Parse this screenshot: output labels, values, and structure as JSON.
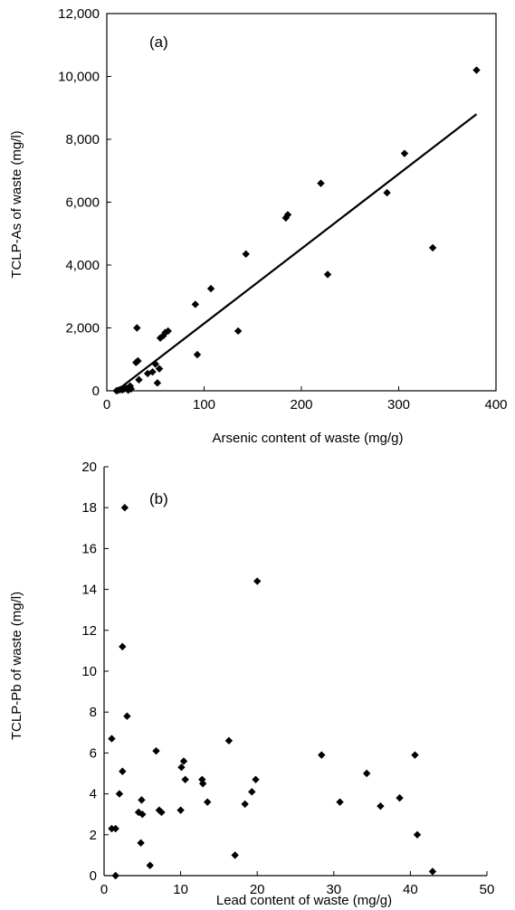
{
  "chart_data": [
    {
      "type": "scatter",
      "panel_label": "(a)",
      "xlabel": "Arsenic content of waste (mg/g)",
      "ylabel": "TCLP-As of waste (mg/l)",
      "xlim": [
        0,
        400
      ],
      "ylim": [
        0,
        12000
      ],
      "xticks": [
        0,
        100,
        200,
        300,
        400
      ],
      "xtick_labels": [
        "0",
        "100",
        "200",
        "300",
        "400"
      ],
      "yticks": [
        0,
        2000,
        4000,
        6000,
        8000,
        10000,
        12000
      ],
      "ytick_labels": [
        "0",
        "2,000",
        "4,000",
        "6,000",
        "8,000",
        "10,000",
        "12,000"
      ],
      "grid": false,
      "points": [
        {
          "x": 10,
          "y": 0
        },
        {
          "x": 12,
          "y": 20
        },
        {
          "x": 14,
          "y": 40
        },
        {
          "x": 16,
          "y": 30
        },
        {
          "x": 18,
          "y": 60
        },
        {
          "x": 20,
          "y": 80
        },
        {
          "x": 22,
          "y": 20
        },
        {
          "x": 24,
          "y": 150
        },
        {
          "x": 25,
          "y": 60
        },
        {
          "x": 30,
          "y": 900
        },
        {
          "x": 31,
          "y": 2000
        },
        {
          "x": 32,
          "y": 950
        },
        {
          "x": 33,
          "y": 350
        },
        {
          "x": 42,
          "y": 550
        },
        {
          "x": 47,
          "y": 600
        },
        {
          "x": 50,
          "y": 850
        },
        {
          "x": 52,
          "y": 250
        },
        {
          "x": 54,
          "y": 700
        },
        {
          "x": 55,
          "y": 1680
        },
        {
          "x": 58,
          "y": 1750
        },
        {
          "x": 60,
          "y": 1850
        },
        {
          "x": 63,
          "y": 1900
        },
        {
          "x": 91,
          "y": 2750
        },
        {
          "x": 93,
          "y": 1150
        },
        {
          "x": 107,
          "y": 3250
        },
        {
          "x": 135,
          "y": 1900
        },
        {
          "x": 143,
          "y": 4350
        },
        {
          "x": 184,
          "y": 5500
        },
        {
          "x": 186,
          "y": 5600
        },
        {
          "x": 220,
          "y": 6600
        },
        {
          "x": 227,
          "y": 3700
        },
        {
          "x": 288,
          "y": 6300
        },
        {
          "x": 306,
          "y": 7550
        },
        {
          "x": 335,
          "y": 4550
        },
        {
          "x": 380,
          "y": 10200
        }
      ],
      "trendline": {
        "x": [
          10,
          380
        ],
        "y": [
          0,
          8800
        ]
      }
    },
    {
      "type": "scatter",
      "panel_label": "(b)",
      "xlabel": "Lead content of waste (mg/g)",
      "ylabel": "TCLP-Pb of waste (mg/l)",
      "xlim": [
        0,
        50
      ],
      "ylim": [
        0,
        20
      ],
      "xticks": [
        0,
        10,
        20,
        30,
        40,
        50
      ],
      "xtick_labels": [
        "0",
        "10",
        "20",
        "30",
        "40",
        "50"
      ],
      "yticks": [
        0,
        2,
        4,
        6,
        8,
        10,
        12,
        14,
        16,
        18,
        20
      ],
      "ytick_labels": [
        "0",
        "2",
        "4",
        "6",
        "8",
        "10",
        "12",
        "14",
        "16",
        "18",
        "20"
      ],
      "grid": false,
      "points": [
        {
          "x": 1.0,
          "y": 6.7
        },
        {
          "x": 1.0,
          "y": 2.3
        },
        {
          "x": 1.5,
          "y": 2.3
        },
        {
          "x": 1.5,
          "y": 0.0
        },
        {
          "x": 2.0,
          "y": 4.0
        },
        {
          "x": 2.4,
          "y": 11.2
        },
        {
          "x": 2.4,
          "y": 5.1
        },
        {
          "x": 2.7,
          "y": 18.0
        },
        {
          "x": 3.0,
          "y": 7.8
        },
        {
          "x": 4.5,
          "y": 3.1
        },
        {
          "x": 4.8,
          "y": 1.6
        },
        {
          "x": 4.9,
          "y": 3.7
        },
        {
          "x": 5.0,
          "y": 3.0
        },
        {
          "x": 6.0,
          "y": 0.5
        },
        {
          "x": 6.8,
          "y": 6.1
        },
        {
          "x": 7.2,
          "y": 3.2
        },
        {
          "x": 7.5,
          "y": 3.1
        },
        {
          "x": 10.0,
          "y": 3.2
        },
        {
          "x": 10.1,
          "y": 5.3
        },
        {
          "x": 10.4,
          "y": 5.6
        },
        {
          "x": 10.6,
          "y": 4.7
        },
        {
          "x": 12.8,
          "y": 4.7
        },
        {
          "x": 12.9,
          "y": 4.5
        },
        {
          "x": 13.5,
          "y": 3.6
        },
        {
          "x": 16.3,
          "y": 6.6
        },
        {
          "x": 17.1,
          "y": 1.0
        },
        {
          "x": 18.4,
          "y": 3.5
        },
        {
          "x": 19.3,
          "y": 4.1
        },
        {
          "x": 19.8,
          "y": 4.7
        },
        {
          "x": 20.0,
          "y": 14.4
        },
        {
          "x": 28.4,
          "y": 5.9
        },
        {
          "x": 30.8,
          "y": 3.6
        },
        {
          "x": 34.3,
          "y": 5.0
        },
        {
          "x": 36.1,
          "y": 3.4
        },
        {
          "x": 38.6,
          "y": 3.8
        },
        {
          "x": 40.6,
          "y": 5.9
        },
        {
          "x": 40.9,
          "y": 2.0
        },
        {
          "x": 42.9,
          "y": 0.2
        }
      ]
    }
  ]
}
